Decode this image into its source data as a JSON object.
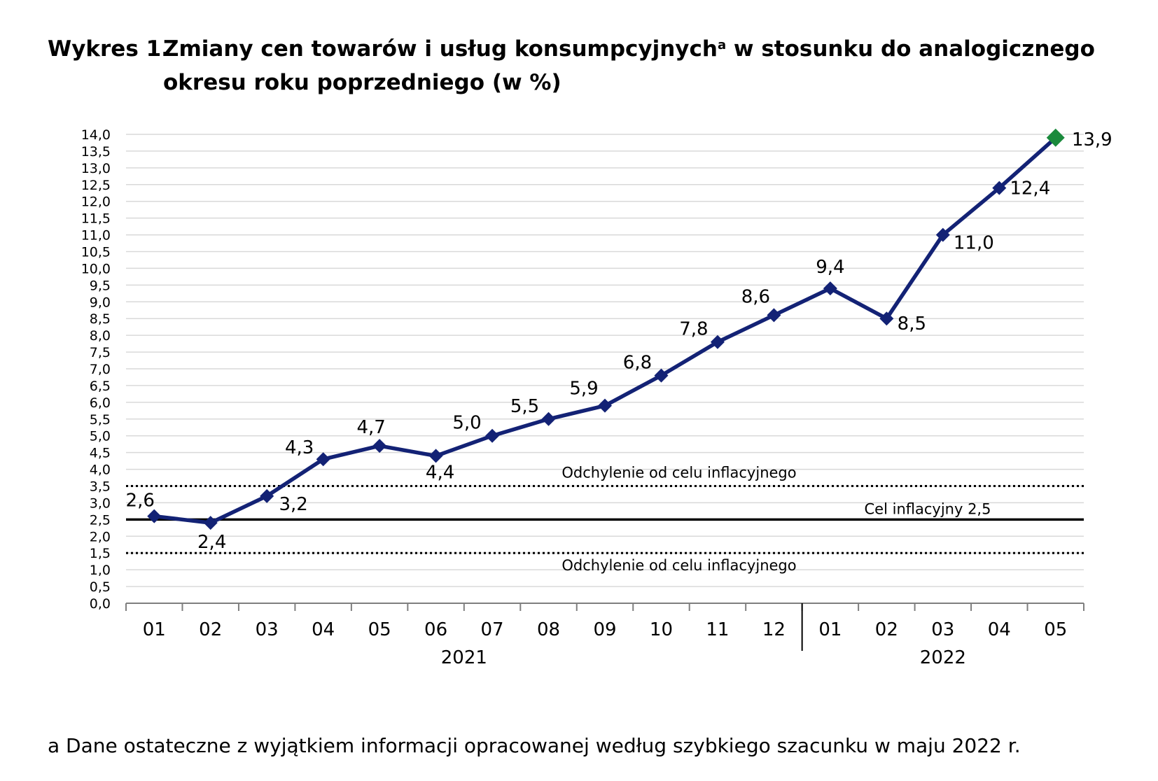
{
  "title": {
    "prefix": "Wykres 1.",
    "main": "Zmiany cen towarów i usług konsumpcyjnych",
    "sup": "a",
    "rest": " w stosunku do analogicznego okresu roku poprzedniego (w %)"
  },
  "footnote": "a Dane ostateczne z wyjątkiem informacji opracowanej według szybkiego szacunku w maju 2022 r.",
  "colors": {
    "line": "#132275",
    "highlight": "#1a8a3c",
    "grid": "#d9d9d9"
  },
  "chart_data": {
    "type": "line",
    "categories": [
      "01",
      "02",
      "03",
      "04",
      "05",
      "06",
      "07",
      "08",
      "09",
      "10",
      "11",
      "12",
      "01",
      "02",
      "03",
      "04",
      "05"
    ],
    "groups": [
      {
        "label": "2021",
        "from": 0,
        "to": 11
      },
      {
        "label": "2022",
        "from": 12,
        "to": 16
      }
    ],
    "series": [
      {
        "values": [
          2.6,
          2.4,
          3.2,
          4.3,
          4.7,
          4.4,
          5.0,
          5.5,
          5.9,
          6.8,
          7.8,
          8.6,
          9.4,
          8.5,
          11.0,
          12.4,
          13.9
        ]
      }
    ],
    "data_labels": [
      "2,6",
      "2,4",
      "3,2",
      "4,3",
      "4,7",
      "4,4",
      "5,0",
      "5,5",
      "5,9",
      "6,8",
      "7,8",
      "8,6",
      "9,4",
      "8,5",
      "11,0",
      "12,4",
      "13,9"
    ],
    "highlight_last_point": true,
    "ylim": [
      0,
      14
    ],
    "ytick_step": 0.5,
    "ytick_labels": [
      "0,0",
      "0,5",
      "1,0",
      "1,5",
      "2,0",
      "2,5",
      "3,0",
      "3,5",
      "4,0",
      "4,5",
      "5,0",
      "5,5",
      "6,0",
      "6,5",
      "7,0",
      "7,5",
      "8,0",
      "8,5",
      "9,0",
      "9,5",
      "10,0",
      "10,5",
      "11,0",
      "11,5",
      "12,0",
      "12,5",
      "13,0",
      "13,5",
      "14,0"
    ],
    "grid": true,
    "reference_lines": [
      {
        "value": 3.5,
        "style": "dotted",
        "label": "Odchylenie od celu inflacyjnego"
      },
      {
        "value": 2.5,
        "style": "solid",
        "label": "Cel inflacyjny 2,5"
      },
      {
        "value": 1.5,
        "style": "dotted",
        "label": "Odchylenie od celu inflacyjnego"
      }
    ]
  }
}
